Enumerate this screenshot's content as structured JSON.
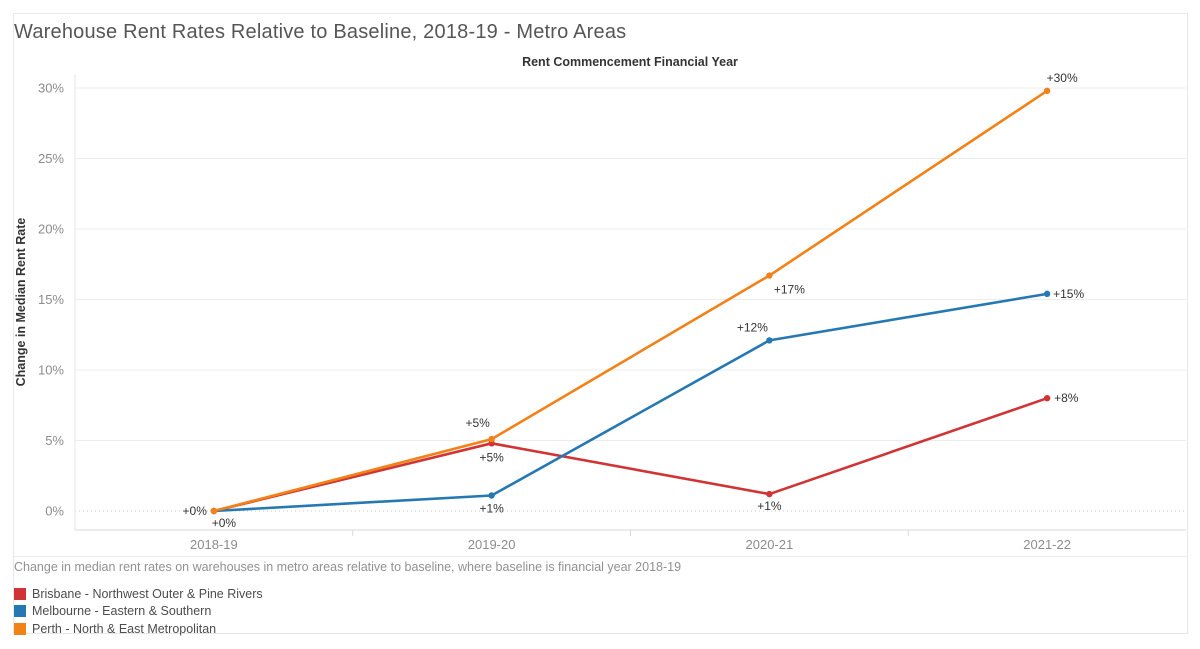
{
  "title": "Warehouse Rent Rates Relative to Baseline, 2018-19 - Metro Areas",
  "caption": "Change in median rent rates on warehouses in metro areas relative to baseline, where baseline is financial year 2018-19",
  "chart_data": {
    "type": "line",
    "title": "Warehouse Rent Rates Relative to Baseline, 2018-19 - Metro Areas",
    "xlabel": "Rent Commencement Financial Year",
    "ylabel": "Change in Median Rent Rate",
    "categories": [
      "2018-19",
      "2019-20",
      "2020-21",
      "2021-22"
    ],
    "y_tick_labels": [
      "0%",
      "5%",
      "10%",
      "15%",
      "20%",
      "25%",
      "30%"
    ],
    "y_tick_values": [
      0,
      5,
      10,
      15,
      20,
      25,
      30
    ],
    "ylim": [
      0,
      30
    ],
    "grid": "horizontal",
    "baseline_dotted": true,
    "legend_position": "bottom-left",
    "series": [
      {
        "name": "Brisbane - Northwest Outer & Pine Rivers",
        "color": "#d03434",
        "values": [
          0,
          4.8,
          1.2,
          8
        ],
        "point_labels": [
          {
            "text": "+0%",
            "dx": -7,
            "dy": 4,
            "anchor": "end"
          },
          {
            "text": "+5%",
            "dx": 0,
            "dy": 18,
            "anchor": "middle"
          },
          {
            "text": "+1%",
            "dx": 0,
            "dy": 16,
            "anchor": "middle"
          },
          {
            "text": "+8%",
            "dx": 7,
            "dy": 4,
            "anchor": "start"
          }
        ]
      },
      {
        "name": "Melbourne - Eastern & Southern",
        "color": "#2678b2",
        "values": [
          0,
          1.1,
          12.1,
          15.4
        ],
        "point_labels": [
          {
            "text": "+0%",
            "dx": 10,
            "dy": 16,
            "anchor": "middle"
          },
          {
            "text": "+1%",
            "dx": 0,
            "dy": 17,
            "anchor": "middle"
          },
          {
            "text": "+12%",
            "dx": -17,
            "dy": -9,
            "anchor": "middle"
          },
          {
            "text": "+15%",
            "dx": 6,
            "dy": 4,
            "anchor": "start"
          }
        ]
      },
      {
        "name": "Perth - North & East Metropolitan",
        "color": "#f28118",
        "values": [
          0,
          5.1,
          16.7,
          29.8
        ],
        "point_labels": [
          null,
          {
            "text": "+5%",
            "dx": -14,
            "dy": -12,
            "anchor": "middle"
          },
          {
            "text": "+17%",
            "dx": 20,
            "dy": 18,
            "anchor": "middle"
          },
          {
            "text": "+30%",
            "dx": 15,
            "dy": -9,
            "anchor": "middle"
          }
        ]
      }
    ]
  }
}
